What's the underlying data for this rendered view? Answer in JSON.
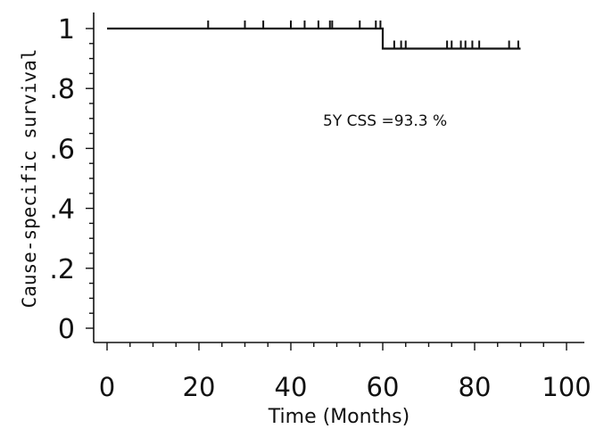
{
  "chart_data": {
    "type": "line",
    "title": "",
    "xlabel": "Time (Months)",
    "ylabel": "Cause-specific survival",
    "xlim": [
      0,
      100
    ],
    "ylim": [
      0,
      1
    ],
    "x_ticks": [
      0,
      20,
      40,
      60,
      80,
      100
    ],
    "x_tick_labels": [
      "0",
      "20",
      "40",
      "60",
      "80",
      "100"
    ],
    "y_ticks": [
      0,
      0.2,
      0.4,
      0.6,
      0.8,
      1
    ],
    "y_tick_labels": [
      "0",
      ".2",
      ".4",
      ".6",
      ".8",
      "1"
    ],
    "grid": false,
    "annotation": "5Y CSS =93.3 %",
    "series": [
      {
        "steps": [
          {
            "x": 0,
            "y": 1.0
          },
          {
            "x": 60,
            "y": 0.933
          },
          {
            "x": 90,
            "y": 0.933
          }
        ],
        "censored_times": [
          22,
          30,
          34,
          40,
          43,
          46,
          48.5,
          49,
          55,
          58.5,
          59.5,
          62.5,
          64,
          65,
          74,
          75,
          77,
          78,
          79.5,
          81,
          87.5,
          89.5
        ]
      }
    ]
  }
}
